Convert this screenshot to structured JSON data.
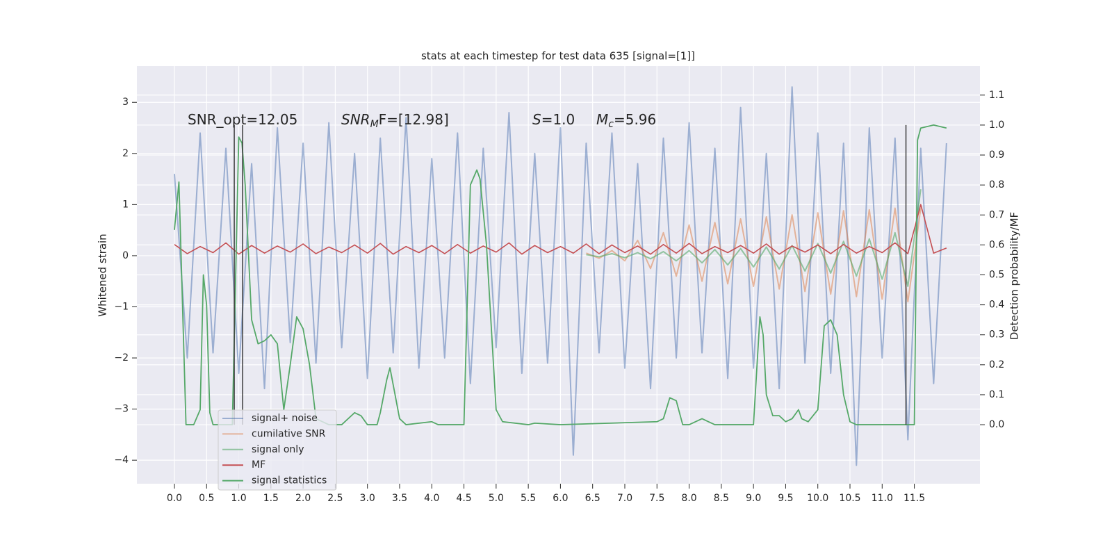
{
  "chart_data": {
    "type": "line",
    "title": "stats at each timestep for test data 635 [signal=[1]]",
    "ylabel": "Whitened strain",
    "y2label": "Detection probability/MF",
    "annotations": [
      [
        {
          "text": "SNR_opt=12.05"
        }
      ],
      [
        {
          "text": "SNR",
          "italic": true
        },
        {
          "text": "M",
          "italic": true,
          "sub": true
        },
        {
          "text": "F=[12.98]"
        }
      ],
      [
        {
          "text": "S",
          "italic": true
        },
        {
          "text": "=1.0"
        }
      ],
      [
        {
          "text": "M",
          "italic": true
        },
        {
          "text": "c",
          "italic": true,
          "sub": true
        },
        {
          "text": "=5.96"
        }
      ]
    ],
    "x": [
      0,
      0.2,
      0.4,
      0.6,
      0.8,
      1.0,
      1.2,
      1.4,
      1.6,
      1.8,
      2.0,
      2.2,
      2.4,
      2.6,
      2.8,
      3.0,
      3.2,
      3.4,
      3.6,
      3.8,
      4.0,
      4.2,
      4.4,
      4.6,
      4.8,
      5.0,
      5.2,
      5.4,
      5.6,
      5.8,
      6.0,
      6.2,
      6.4,
      6.6,
      6.8,
      7.0,
      7.2,
      7.4,
      7.6,
      7.8,
      8.0,
      8.2,
      8.4,
      8.6,
      8.8,
      9.0,
      9.2,
      9.4,
      9.6,
      9.8,
      10.0,
      10.2,
      10.4,
      10.6,
      10.8,
      11.0,
      11.2,
      11.4,
      11.6,
      11.8,
      12.0
    ],
    "series": [
      {
        "name": "signal+ noise",
        "color": "#4c72b0",
        "opacity": 0.5,
        "values": [
          1.6,
          -2.0,
          2.4,
          -1.9,
          2.1,
          -2.3,
          1.8,
          -2.6,
          2.5,
          -1.7,
          2.2,
          -2.1,
          2.6,
          -1.8,
          2.0,
          -2.4,
          2.3,
          -1.9,
          2.7,
          -2.2,
          1.9,
          -2.0,
          2.4,
          -2.5,
          2.1,
          -1.8,
          2.8,
          -2.3,
          2.0,
          -2.1,
          2.5,
          -3.9,
          2.2,
          -1.9,
          2.4,
          -2.2,
          1.8,
          -2.6,
          2.3,
          -2.0,
          2.6,
          -1.9,
          2.1,
          -2.4,
          2.9,
          -2.2,
          2.0,
          -2.6,
          3.3,
          -2.1,
          2.4,
          -2.3,
          2.2,
          -4.1,
          2.5,
          -2.0,
          2.3,
          -3.6,
          2.1,
          -2.5,
          2.2
        ]
      },
      {
        "name": "cumilative SNR",
        "color": "#dd8452",
        "opacity": 0.55,
        "values": [
          null,
          null,
          null,
          null,
          null,
          null,
          null,
          null,
          null,
          null,
          null,
          null,
          null,
          null,
          null,
          null,
          null,
          null,
          null,
          null,
          null,
          null,
          null,
          null,
          null,
          null,
          null,
          null,
          null,
          null,
          null,
          null,
          0.05,
          -0.05,
          0.1,
          -0.1,
          0.3,
          -0.25,
          0.45,
          -0.4,
          0.6,
          -0.5,
          0.65,
          -0.55,
          0.72,
          -0.6,
          0.76,
          -0.65,
          0.8,
          -0.7,
          0.84,
          -0.75,
          0.88,
          -0.8,
          0.9,
          -0.85,
          0.93,
          -0.9,
          0.93,
          null,
          null
        ]
      },
      {
        "name": "signal only",
        "color": "#55a868",
        "opacity": 0.6,
        "values": [
          null,
          null,
          null,
          null,
          null,
          null,
          null,
          null,
          null,
          null,
          null,
          null,
          null,
          null,
          null,
          null,
          null,
          null,
          null,
          null,
          null,
          null,
          null,
          null,
          null,
          null,
          null,
          null,
          null,
          null,
          null,
          null,
          0.02,
          -0.02,
          0.04,
          -0.04,
          0.06,
          -0.06,
          0.08,
          -0.1,
          0.1,
          -0.14,
          0.12,
          -0.18,
          0.14,
          -0.22,
          0.17,
          -0.26,
          0.2,
          -0.3,
          0.24,
          -0.34,
          0.28,
          -0.4,
          0.33,
          -0.46,
          0.45,
          -0.6,
          1.3,
          null,
          null
        ]
      },
      {
        "name": "MF",
        "color": "#c44e52",
        "opacity": 1,
        "values": [
          0.22,
          0.04,
          0.18,
          0.06,
          0.25,
          0.03,
          0.2,
          0.05,
          0.19,
          0.07,
          0.23,
          0.04,
          0.17,
          0.06,
          0.21,
          0.05,
          0.24,
          0.03,
          0.18,
          0.06,
          0.2,
          0.04,
          0.22,
          0.05,
          0.19,
          0.07,
          0.25,
          0.03,
          0.2,
          0.06,
          0.18,
          0.05,
          0.23,
          0.04,
          0.21,
          0.06,
          0.19,
          0.03,
          0.22,
          0.05,
          0.24,
          0.04,
          0.18,
          0.06,
          0.2,
          0.05,
          0.23,
          0.03,
          0.19,
          0.07,
          0.21,
          0.04,
          0.22,
          0.05,
          0.18,
          0.06,
          0.25,
          0.04,
          1.0,
          0.05,
          0.15
        ]
      },
      {
        "name": "signal statistics",
        "color": "#55a868",
        "opacity": 1,
        "axis": "y2",
        "x": [
          0,
          0.07,
          0.18,
          0.3,
          0.4,
          0.45,
          0.5,
          0.55,
          0.6,
          0.9,
          1.0,
          1.05,
          1.1,
          1.2,
          1.3,
          1.4,
          1.5,
          1.6,
          1.7,
          1.8,
          1.9,
          2.0,
          2.1,
          2.2,
          2.4,
          2.6,
          2.8,
          2.9,
          3.0,
          3.15,
          3.2,
          3.3,
          3.35,
          3.5,
          3.6,
          4.0,
          4.1,
          4.5,
          4.6,
          4.7,
          4.75,
          4.85,
          5.0,
          5.1,
          5.5,
          5.6,
          6.0,
          7.5,
          7.6,
          7.7,
          7.8,
          7.9,
          8.0,
          8.2,
          8.4,
          9.0,
          9.1,
          9.15,
          9.2,
          9.3,
          9.4,
          9.5,
          9.6,
          9.7,
          9.75,
          9.85,
          10.0,
          10.1,
          10.2,
          10.3,
          10.4,
          10.5,
          10.6,
          11.0,
          11.5,
          11.55,
          11.6,
          11.8,
          12.0
        ],
        "values": [
          0.65,
          0.81,
          0.0,
          0.0,
          0.05,
          0.5,
          0.4,
          0.04,
          0.0,
          0.0,
          0.96,
          0.94,
          0.8,
          0.35,
          0.27,
          0.28,
          0.3,
          0.27,
          0.05,
          0.2,
          0.36,
          0.32,
          0.2,
          0.02,
          0.0,
          0.0,
          0.04,
          0.03,
          0.0,
          0.0,
          0.04,
          0.15,
          0.19,
          0.02,
          0.0,
          0.01,
          0.0,
          0.0,
          0.8,
          0.85,
          0.82,
          0.6,
          0.05,
          0.01,
          0.0,
          0.005,
          0.0,
          0.01,
          0.02,
          0.09,
          0.08,
          0.0,
          0.0,
          0.02,
          0.0,
          0.0,
          0.36,
          0.3,
          0.1,
          0.03,
          0.03,
          0.01,
          0.02,
          0.05,
          0.02,
          0.01,
          0.05,
          0.33,
          0.35,
          0.3,
          0.1,
          0.01,
          0.0,
          0.0,
          0.0,
          0.95,
          0.99,
          1.0,
          0.99
        ]
      }
    ],
    "vlines": {
      "x": [
        0.93,
        1.06,
        11.37
      ],
      "y2range": [
        0,
        1
      ],
      "color": "#3a3a3a"
    },
    "xlim": [
      -0.583,
      12.52
    ],
    "ylim": [
      -4.46,
      3.71
    ],
    "y2lim": [
      -0.197,
      1.197
    ],
    "xticks": [
      {
        "value": 0,
        "label": "0.0"
      },
      {
        "value": 0.5,
        "label": "0.5"
      },
      {
        "value": 1,
        "label": "1.0"
      },
      {
        "value": 1.5,
        "label": "1.5"
      },
      {
        "value": 2,
        "label": "2.0"
      },
      {
        "value": 2.5,
        "label": "2.5"
      },
      {
        "value": 3,
        "label": "3.0"
      },
      {
        "value": 3.5,
        "label": "3.5"
      },
      {
        "value": 4,
        "label": "4.0"
      },
      {
        "value": 4.5,
        "label": "4.5"
      },
      {
        "value": 5,
        "label": "5.0"
      },
      {
        "value": 5.5,
        "label": "5.5"
      },
      {
        "value": 6,
        "label": "6.0"
      },
      {
        "value": 6.5,
        "label": "6.5"
      },
      {
        "value": 7,
        "label": "7.0"
      },
      {
        "value": 7.5,
        "label": "7.5"
      },
      {
        "value": 8,
        "label": "8.0"
      },
      {
        "value": 8.5,
        "label": "8.5"
      },
      {
        "value": 9,
        "label": "9.0"
      },
      {
        "value": 9.5,
        "label": "9.5"
      },
      {
        "value": 10,
        "label": "10.0"
      },
      {
        "value": 10.5,
        "label": "10.5"
      },
      {
        "value": 11,
        "label": "11.0"
      },
      {
        "value": 11.5,
        "label": "11.5"
      }
    ],
    "yticks": [
      {
        "value": -4,
        "label": "−4"
      },
      {
        "value": -3,
        "label": "−3"
      },
      {
        "value": -2,
        "label": "−2"
      },
      {
        "value": -1,
        "label": "−1"
      },
      0,
      1,
      2,
      3
    ],
    "y2ticks": [
      {
        "value": 0,
        "label": "0.0"
      },
      {
        "value": 0.1,
        "label": "0.1"
      },
      {
        "value": 0.2,
        "label": "0.2"
      },
      {
        "value": 0.3,
        "label": "0.3"
      },
      {
        "value": 0.4,
        "label": "0.4"
      },
      {
        "value": 0.5,
        "label": "0.5"
      },
      {
        "value": 0.6,
        "label": "0.6"
      },
      {
        "value": 0.7,
        "label": "0.7"
      },
      {
        "value": 0.8,
        "label": "0.8"
      },
      {
        "value": 0.9,
        "label": "0.9"
      },
      {
        "value": 1,
        "label": "1.0"
      },
      {
        "value": 1.1,
        "label": "1.1"
      }
    ],
    "grid": true,
    "legend": "lower left"
  }
}
